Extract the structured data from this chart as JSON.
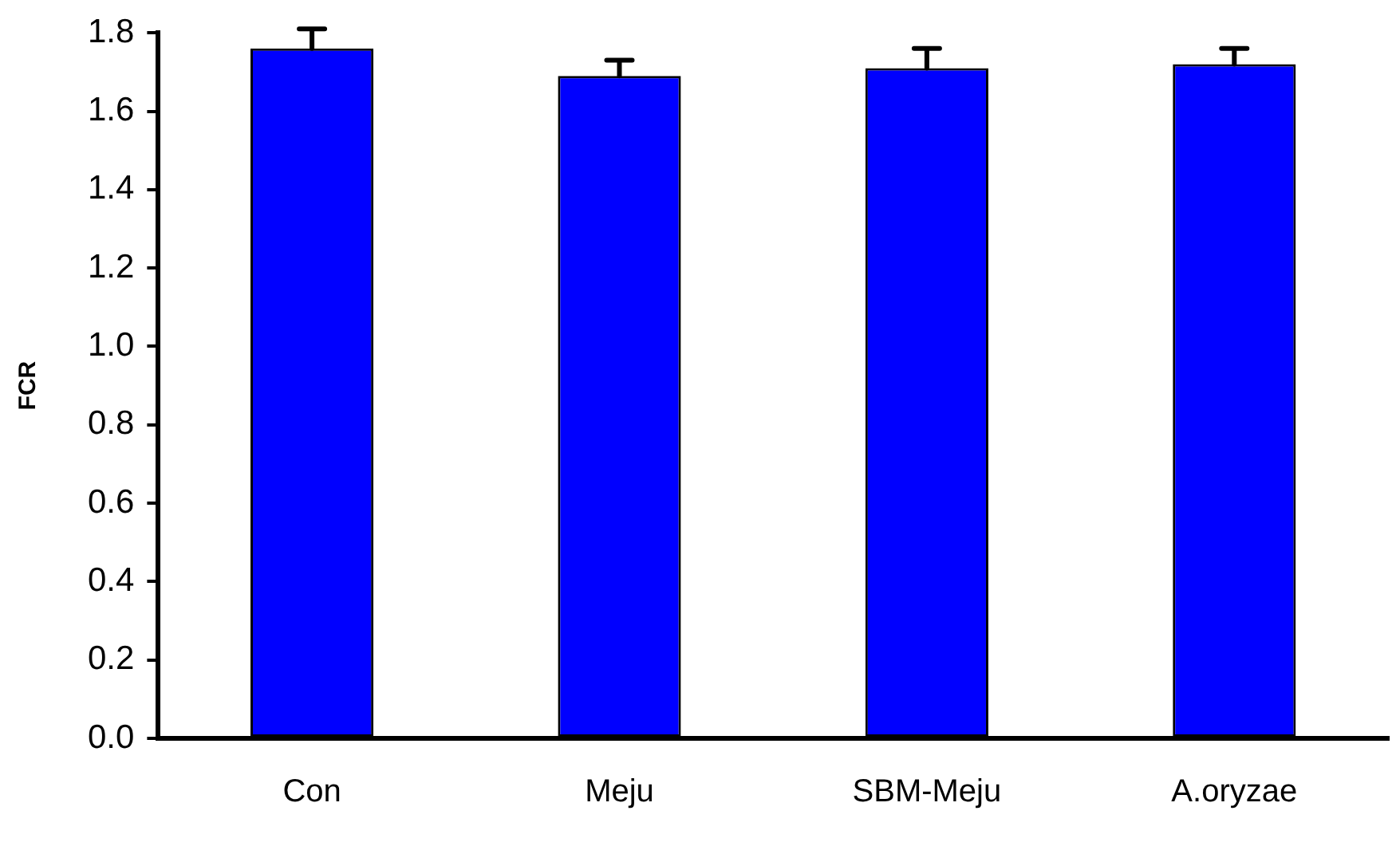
{
  "chart_data": {
    "type": "bar",
    "ylabel": "FCR",
    "categories": [
      "Con",
      "Meju",
      "SBM-Meju",
      "A.oryzae"
    ],
    "values": [
      1.76,
      1.69,
      1.71,
      1.72
    ],
    "errors": [
      [
        1.76,
        1.81
      ],
      [
        1.69,
        1.73
      ],
      [
        1.71,
        1.76
      ],
      [
        1.72,
        1.76
      ]
    ],
    "color": "#0000ff",
    "ylim": [
      0,
      1.8
    ],
    "yticks": [
      {
        "value": 0,
        "label": "0.0"
      },
      {
        "value": 0.2,
        "label": "0.2"
      },
      {
        "value": 0.4,
        "label": "0.4"
      },
      {
        "value": 0.6,
        "label": "0.6"
      },
      {
        "value": 0.8,
        "label": "0.8"
      },
      {
        "value": 1.0,
        "label": "1.0"
      },
      {
        "value": 1.2,
        "label": "1.2"
      },
      {
        "value": 1.4,
        "label": "1.4"
      },
      {
        "value": 1.6,
        "label": "1.6"
      },
      {
        "value": 1.8,
        "label": "1.8"
      }
    ],
    "grid": false,
    "legend": false
  }
}
